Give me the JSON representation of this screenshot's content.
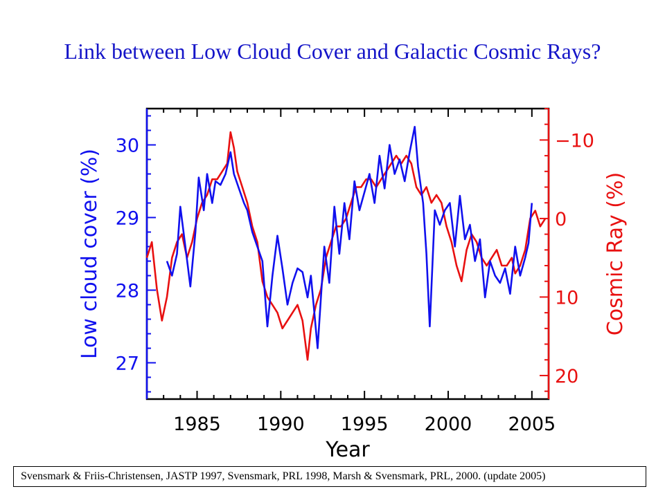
{
  "title": "Link between Low Cloud Cover and Galactic Cosmic Rays?",
  "citation": "Svensmark & Friis-Christensen, JASTP 1997, Svensmark, PRL  1998, Marsh & Svensmark, PRL, 2000. (update 2005)",
  "colors": {
    "title": "#1515c8",
    "cloud": "#1010ee",
    "cosmic": "#e81010",
    "axis": "#000000"
  },
  "chart_data": {
    "type": "line",
    "xlabel": "Year",
    "ylabel_left": "Low cloud cover (%)",
    "ylabel_right": "Cosmic Ray (%)",
    "xlim": [
      1982,
      2006
    ],
    "ylim_left": [
      26.5,
      30.5
    ],
    "ylim_right": [
      23,
      -14
    ],
    "right_axis_inverted": true,
    "x_ticks": [
      "1985",
      "1990",
      "1995",
      "2000",
      "2005"
    ],
    "y_left_ticks": [
      "27",
      "28",
      "29",
      "30"
    ],
    "y_right_ticks": [
      "−10",
      "0",
      "10",
      "20"
    ],
    "series": [
      {
        "name": "Low cloud cover (%)",
        "axis": "left",
        "color": "#1010ee",
        "x": [
          1983.2,
          1983.5,
          1983.8,
          1984.0,
          1984.3,
          1984.6,
          1984.9,
          1985.1,
          1985.4,
          1985.6,
          1985.9,
          1986.1,
          1986.4,
          1986.7,
          1987.0,
          1987.2,
          1987.5,
          1987.8,
          1988.0,
          1988.3,
          1988.6,
          1988.9,
          1989.2,
          1989.5,
          1989.8,
          1990.1,
          1990.4,
          1990.7,
          1991.0,
          1991.3,
          1991.6,
          1991.8,
          1992.0,
          1992.2,
          1992.4,
          1992.6,
          1992.9,
          1993.2,
          1993.5,
          1993.8,
          1994.1,
          1994.4,
          1994.7,
          1995.0,
          1995.3,
          1995.6,
          1995.9,
          1996.2,
          1996.5,
          1996.8,
          1997.1,
          1997.4,
          1997.7,
          1998.0,
          1998.2,
          1998.5,
          1998.7,
          1998.9,
          1999.2,
          1999.5,
          1999.8,
          2000.1,
          2000.4,
          2000.7,
          2001.0,
          2001.3,
          2001.6,
          2001.9,
          2002.2,
          2002.5,
          2002.8,
          2003.1,
          2003.4,
          2003.7,
          2004.0,
          2004.3,
          2004.6,
          2004.8,
          2005.0
        ],
        "values": [
          28.4,
          28.2,
          28.5,
          29.15,
          28.6,
          28.05,
          28.8,
          29.55,
          29.1,
          29.6,
          29.2,
          29.5,
          29.45,
          29.6,
          29.9,
          29.6,
          29.4,
          29.2,
          29.1,
          28.8,
          28.6,
          28.4,
          27.5,
          28.2,
          28.75,
          28.3,
          27.8,
          28.1,
          28.3,
          28.25,
          27.9,
          28.2,
          27.7,
          27.2,
          27.9,
          28.6,
          28.1,
          29.15,
          28.5,
          29.2,
          28.7,
          29.5,
          29.1,
          29.35,
          29.6,
          29.2,
          29.85,
          29.4,
          30.0,
          29.6,
          29.8,
          29.5,
          29.9,
          30.25,
          29.7,
          29.2,
          28.5,
          27.5,
          29.1,
          28.9,
          29.1,
          29.2,
          28.6,
          29.3,
          28.7,
          28.9,
          28.4,
          28.7,
          27.9,
          28.4,
          28.2,
          28.1,
          28.3,
          27.95,
          28.6,
          28.2,
          28.45,
          28.65,
          29.2
        ]
      },
      {
        "name": "Cosmic Ray (%)",
        "axis": "right",
        "color": "#e81010",
        "x": [
          1982.0,
          1982.3,
          1982.6,
          1982.9,
          1983.2,
          1983.5,
          1983.8,
          1984.1,
          1984.4,
          1984.7,
          1985.0,
          1985.3,
          1985.6,
          1985.9,
          1986.2,
          1986.5,
          1986.8,
          1987.0,
          1987.2,
          1987.4,
          1987.7,
          1988.0,
          1988.3,
          1988.6,
          1988.9,
          1989.2,
          1989.5,
          1989.8,
          1990.1,
          1990.4,
          1990.7,
          1991.0,
          1991.3,
          1991.6,
          1991.8,
          1992.1,
          1992.4,
          1992.7,
          1993.0,
          1993.3,
          1993.6,
          1993.9,
          1994.2,
          1994.5,
          1994.8,
          1995.1,
          1995.4,
          1995.7,
          1996.0,
          1996.3,
          1996.6,
          1996.9,
          1997.2,
          1997.5,
          1997.8,
          1998.1,
          1998.4,
          1998.7,
          1999.0,
          1999.3,
          1999.6,
          1999.9,
          2000.2,
          2000.5,
          2000.8,
          2001.1,
          2001.4,
          2001.7,
          2002.0,
          2002.3,
          2002.6,
          2002.9,
          2003.2,
          2003.5,
          2003.8,
          2004.0,
          2004.3,
          2004.6,
          2004.9,
          2005.2,
          2005.5,
          2005.8
        ],
        "values": [
          5,
          3,
          9,
          13,
          10,
          5,
          3,
          2,
          5,
          3,
          0,
          -2,
          -3,
          -5,
          -5,
          -6,
          -7,
          -11,
          -9,
          -6,
          -4,
          -2,
          1,
          3,
          8,
          10,
          11,
          12,
          14,
          13,
          12,
          11,
          13,
          18,
          14,
          11,
          9,
          5,
          3,
          1,
          1,
          0,
          -2,
          -4,
          -4,
          -5,
          -5,
          -4,
          -5,
          -6,
          -7,
          -8,
          -7,
          -8,
          -7,
          -4,
          -3,
          -4,
          -2,
          -3,
          -2,
          1,
          3,
          6,
          8,
          4,
          2,
          3,
          5,
          6,
          5,
          4,
          6,
          6,
          5,
          7,
          6,
          4,
          0,
          -1,
          1,
          0
        ]
      }
    ]
  }
}
